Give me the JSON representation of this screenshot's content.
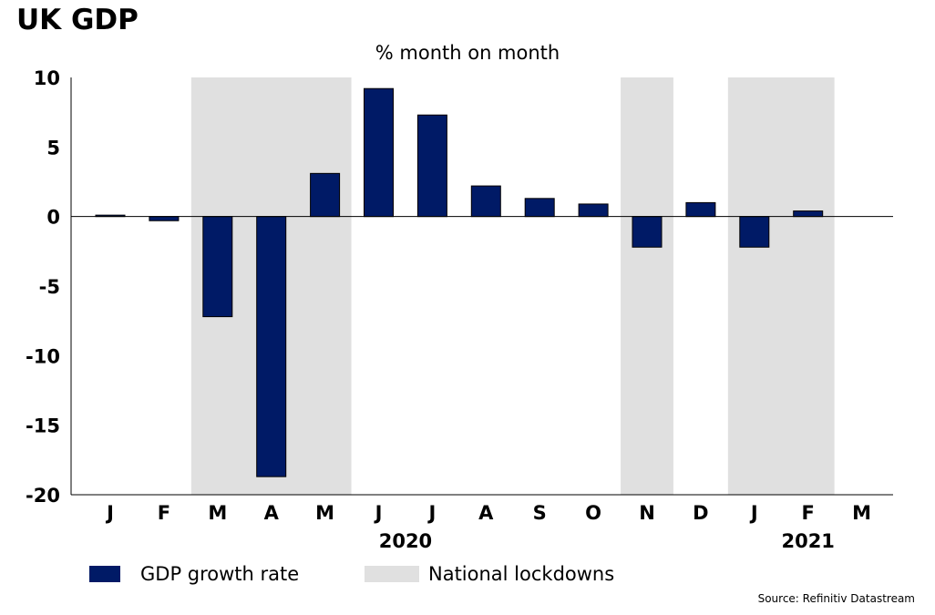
{
  "title": "UK GDP",
  "subtitle": "% month on month",
  "source": "Source: Refinitiv Datastream",
  "colors": {
    "bar": "#001a66",
    "lockdown": "#e0e0e0",
    "axis": "#000000"
  },
  "legend": {
    "series_label": "GDP growth rate",
    "lockdown_label": "National lockdowns"
  },
  "chart_data": {
    "type": "bar",
    "title": "UK GDP",
    "subtitle": "% month on month",
    "categories": [
      "J",
      "F",
      "M",
      "A",
      "M",
      "J",
      "J",
      "A",
      "S",
      "O",
      "N",
      "D",
      "J",
      "F",
      "M"
    ],
    "year_labels": [
      {
        "label": "2020",
        "category_index": 5.5
      },
      {
        "label": "2021",
        "category_index": 13
      }
    ],
    "series": [
      {
        "name": "GDP growth rate",
        "values": [
          0.1,
          -0.3,
          -7.2,
          -18.7,
          3.1,
          9.2,
          7.3,
          2.2,
          1.3,
          0.9,
          -2.2,
          1.0,
          -2.2,
          0.4,
          null
        ]
      }
    ],
    "lockdowns": [
      {
        "label": "National lockdowns",
        "from_index": 2,
        "to_index": 4
      },
      {
        "label": "National lockdowns",
        "from_index": 10,
        "to_index": 10
      },
      {
        "label": "National lockdowns",
        "from_index": 12,
        "to_index": 13
      }
    ],
    "yticks": [
      10,
      5,
      0,
      -5,
      -10,
      -15,
      -20
    ],
    "ylim": [
      -20,
      10
    ],
    "grid": false,
    "legend_position": "bottom"
  }
}
